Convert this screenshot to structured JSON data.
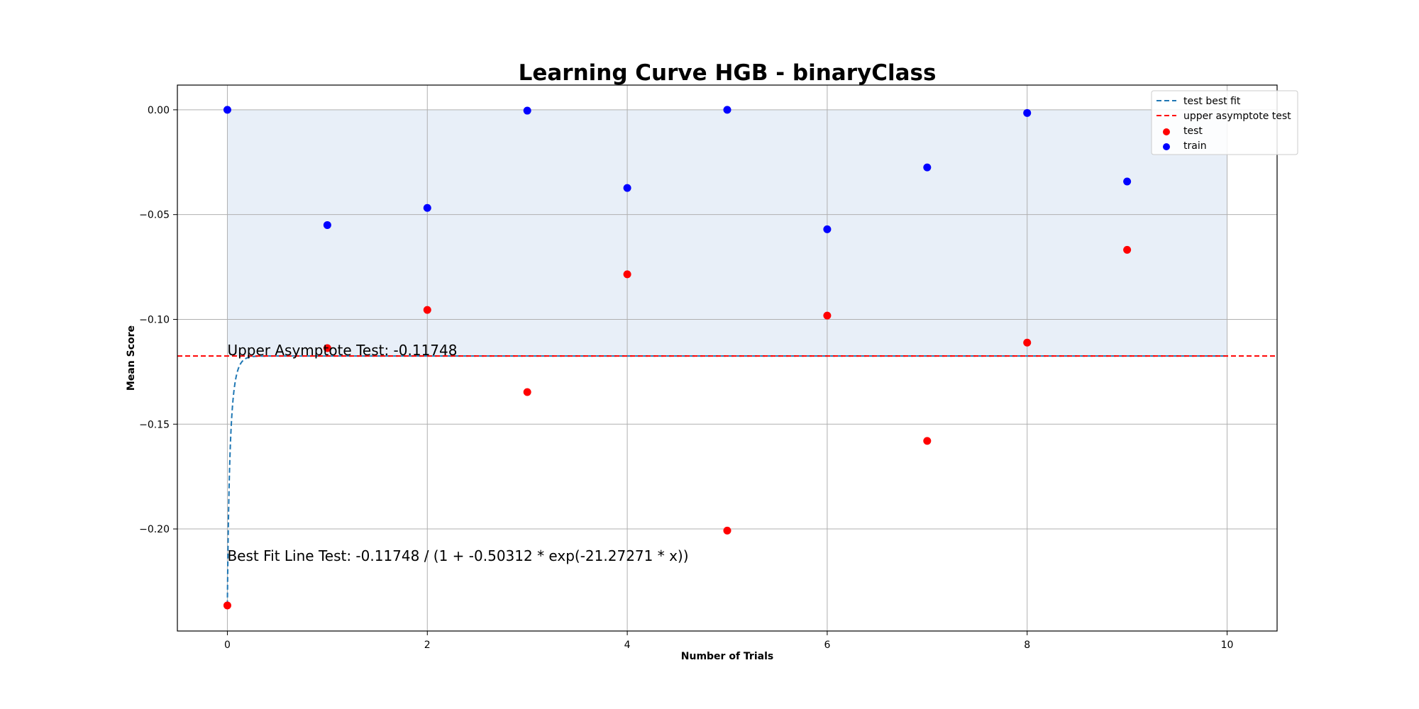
{
  "chart_data": {
    "type": "scatter",
    "title": "Learning Curve HGB - binaryClass",
    "xlabel": "Number of Trials",
    "ylabel": "Mean Score",
    "xlim": [
      -0.5,
      10.5
    ],
    "ylim": [
      -0.2487,
      0.0118
    ],
    "x_ticks": [
      0,
      2,
      4,
      6,
      8,
      10
    ],
    "y_ticks": [
      0.0,
      -0.05,
      -0.1,
      -0.15,
      -0.2
    ],
    "x_tick_labels": [
      "0",
      "2",
      "4",
      "6",
      "8",
      "10"
    ],
    "y_tick_labels": [
      "0.00",
      "−0.05",
      "−0.10",
      "−0.15",
      "−0.20"
    ],
    "grid": true,
    "legend_position": "top-right",
    "colors": {
      "test": "#ff0000",
      "train": "#0000ff",
      "best_fit": "#1f77b4",
      "asymptote": "#ff0000",
      "shade": "#e8eff8"
    },
    "series": [
      {
        "name": "test",
        "kind": "scatter",
        "x": [
          0,
          1,
          2,
          3,
          4,
          5,
          6,
          7,
          8,
          9
        ],
        "y": [
          -0.2365,
          -0.1137,
          -0.0955,
          -0.1347,
          -0.0785,
          -0.2008,
          -0.0982,
          -0.158,
          -0.1111,
          -0.0668
        ]
      },
      {
        "name": "train",
        "kind": "scatter",
        "x": [
          0,
          1,
          2,
          3,
          4,
          5,
          6,
          7,
          8,
          9
        ],
        "y": [
          0.0,
          -0.055,
          -0.0468,
          -0.0004,
          -0.0373,
          0.0,
          -0.057,
          -0.0275,
          -0.0015,
          -0.0342
        ]
      },
      {
        "name": "test best fit",
        "kind": "line",
        "style": "dashed",
        "function": "logistic",
        "params": {
          "L": -0.11748,
          "a": -0.50312,
          "k": -21.27271
        },
        "x_range": [
          0,
          10
        ]
      },
      {
        "name": "upper asymptote test",
        "kind": "hline",
        "style": "dashed",
        "y": -0.11748
      }
    ],
    "shaded_region": {
      "x": [
        0,
        10
      ],
      "y": [
        -0.11748,
        0.0
      ]
    },
    "annotations": [
      {
        "text": "Upper Asymptote Test: -0.11748",
        "x": 0,
        "y": -0.11748
      },
      {
        "text": "Best Fit Line Test: -0.11748 / (1 + -0.50312 * exp(-21.27271 * x))",
        "x": 0,
        "y": -0.2155
      }
    ],
    "legend": [
      "test best fit",
      "upper asymptote test",
      "test",
      "train"
    ]
  }
}
